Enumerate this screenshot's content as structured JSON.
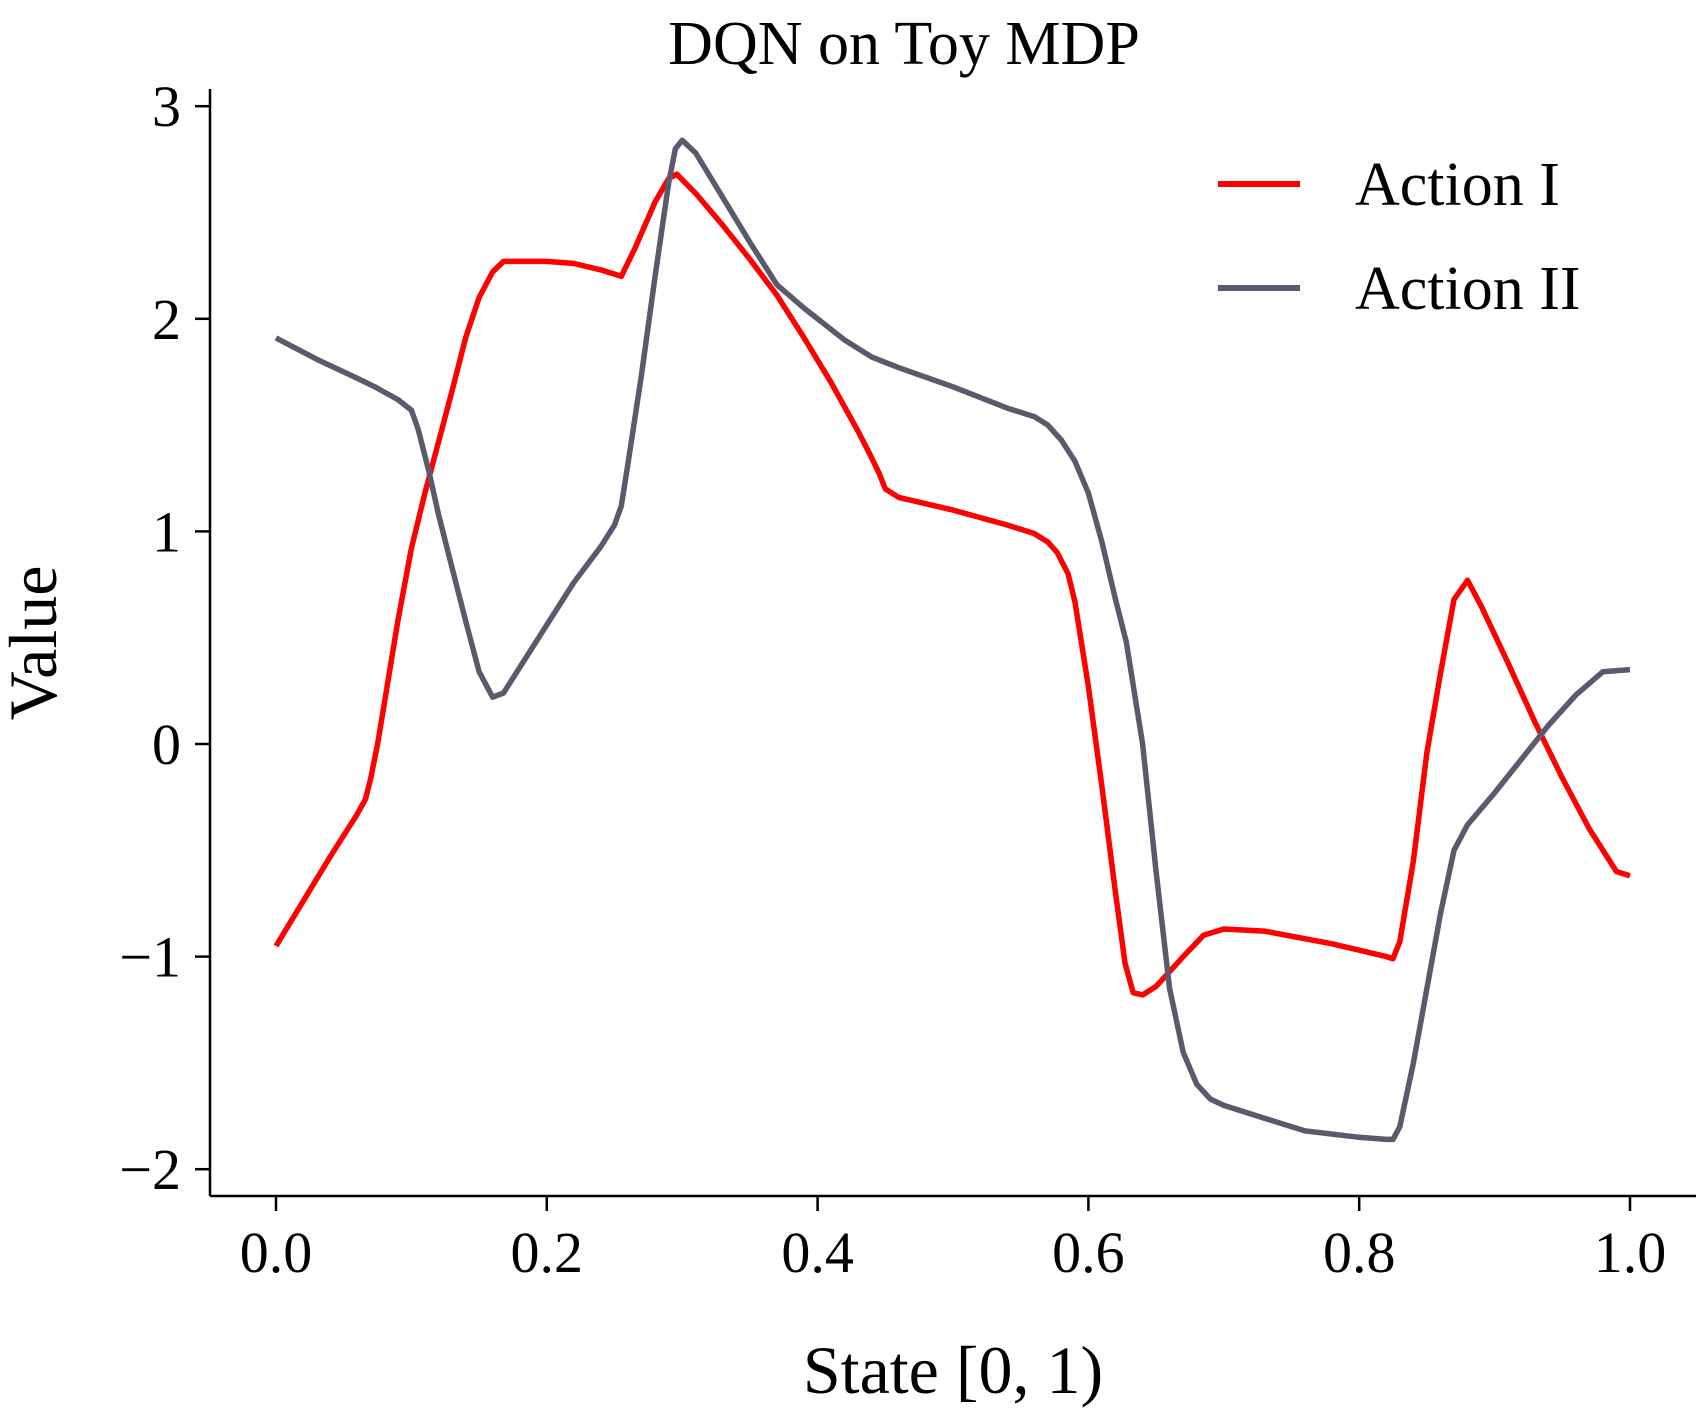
{
  "chart_data": {
    "type": "line",
    "title": "DQN on Toy MDP",
    "xlabel": "State [0, 1)",
    "ylabel": "Value",
    "xlim": [
      -0.05,
      1.05
    ],
    "ylim": [
      -2.1,
      3.1
    ],
    "xticks": [
      0.0,
      0.2,
      0.4,
      0.6,
      0.8,
      1.0
    ],
    "xtick_labels": [
      "0.0",
      "0.2",
      "0.4",
      "0.6",
      "0.8",
      "1.0"
    ],
    "yticks": [
      -2,
      -1,
      0,
      1,
      2,
      3
    ],
    "ytick_labels": [
      "−2",
      "−1",
      "0",
      "1",
      "2",
      "3"
    ],
    "grid": false,
    "legend_position": "top-right",
    "series": [
      {
        "name": "Action I",
        "color": "#ff0000",
        "points": [
          [
            0.0,
            -0.95
          ],
          [
            0.02,
            -0.74
          ],
          [
            0.04,
            -0.53
          ],
          [
            0.06,
            -0.33
          ],
          [
            0.066,
            -0.26
          ],
          [
            0.07,
            -0.16
          ],
          [
            0.075,
            0.0
          ],
          [
            0.08,
            0.19
          ],
          [
            0.09,
            0.58
          ],
          [
            0.1,
            0.92
          ],
          [
            0.11,
            1.18
          ],
          [
            0.12,
            1.42
          ],
          [
            0.13,
            1.66
          ],
          [
            0.14,
            1.91
          ],
          [
            0.15,
            2.1
          ],
          [
            0.16,
            2.22
          ],
          [
            0.168,
            2.27
          ],
          [
            0.2,
            2.27
          ],
          [
            0.22,
            2.26
          ],
          [
            0.24,
            2.23
          ],
          [
            0.255,
            2.2
          ],
          [
            0.265,
            2.33
          ],
          [
            0.28,
            2.55
          ],
          [
            0.29,
            2.66
          ],
          [
            0.296,
            2.68
          ],
          [
            0.31,
            2.59
          ],
          [
            0.33,
            2.44
          ],
          [
            0.35,
            2.28
          ],
          [
            0.37,
            2.11
          ],
          [
            0.39,
            1.91
          ],
          [
            0.41,
            1.7
          ],
          [
            0.43,
            1.47
          ],
          [
            0.438,
            1.37
          ],
          [
            0.445,
            1.28
          ],
          [
            0.45,
            1.2
          ],
          [
            0.46,
            1.16
          ],
          [
            0.5,
            1.1
          ],
          [
            0.54,
            1.03
          ],
          [
            0.56,
            0.99
          ],
          [
            0.57,
            0.95
          ],
          [
            0.577,
            0.9
          ],
          [
            0.585,
            0.8
          ],
          [
            0.59,
            0.67
          ],
          [
            0.6,
            0.27
          ],
          [
            0.61,
            -0.2
          ],
          [
            0.62,
            -0.7
          ],
          [
            0.627,
            -1.03
          ],
          [
            0.633,
            -1.17
          ],
          [
            0.64,
            -1.18
          ],
          [
            0.65,
            -1.14
          ],
          [
            0.67,
            -1.0
          ],
          [
            0.685,
            -0.9
          ],
          [
            0.7,
            -0.87
          ],
          [
            0.73,
            -0.88
          ],
          [
            0.78,
            -0.94
          ],
          [
            0.82,
            -1.0
          ],
          [
            0.825,
            -1.01
          ],
          [
            0.83,
            -0.93
          ],
          [
            0.84,
            -0.55
          ],
          [
            0.85,
            -0.04
          ],
          [
            0.86,
            0.33
          ],
          [
            0.87,
            0.68
          ],
          [
            0.88,
            0.77
          ],
          [
            0.89,
            0.65
          ],
          [
            0.91,
            0.38
          ],
          [
            0.93,
            0.1
          ],
          [
            0.95,
            -0.16
          ],
          [
            0.97,
            -0.4
          ],
          [
            0.99,
            -0.6
          ],
          [
            1.0,
            -0.62
          ]
        ]
      },
      {
        "name": "Action II",
        "color": "#5a5a6e",
        "points": [
          [
            0.0,
            1.91
          ],
          [
            0.03,
            1.81
          ],
          [
            0.06,
            1.72
          ],
          [
            0.073,
            1.68
          ],
          [
            0.09,
            1.62
          ],
          [
            0.1,
            1.57
          ],
          [
            0.105,
            1.48
          ],
          [
            0.113,
            1.28
          ],
          [
            0.12,
            1.08
          ],
          [
            0.13,
            0.83
          ],
          [
            0.14,
            0.58
          ],
          [
            0.15,
            0.34
          ],
          [
            0.16,
            0.22
          ],
          [
            0.168,
            0.24
          ],
          [
            0.18,
            0.36
          ],
          [
            0.2,
            0.56
          ],
          [
            0.22,
            0.76
          ],
          [
            0.24,
            0.93
          ],
          [
            0.25,
            1.03
          ],
          [
            0.255,
            1.12
          ],
          [
            0.26,
            1.32
          ],
          [
            0.27,
            1.74
          ],
          [
            0.28,
            2.2
          ],
          [
            0.29,
            2.64
          ],
          [
            0.295,
            2.8
          ],
          [
            0.3,
            2.84
          ],
          [
            0.31,
            2.78
          ],
          [
            0.33,
            2.57
          ],
          [
            0.35,
            2.36
          ],
          [
            0.37,
            2.16
          ],
          [
            0.39,
            2.05
          ],
          [
            0.42,
            1.9
          ],
          [
            0.44,
            1.82
          ],
          [
            0.46,
            1.77
          ],
          [
            0.5,
            1.68
          ],
          [
            0.54,
            1.58
          ],
          [
            0.56,
            1.54
          ],
          [
            0.57,
            1.5
          ],
          [
            0.58,
            1.43
          ],
          [
            0.59,
            1.33
          ],
          [
            0.6,
            1.18
          ],
          [
            0.61,
            0.95
          ],
          [
            0.62,
            0.68
          ],
          [
            0.628,
            0.48
          ],
          [
            0.64,
            0.0
          ],
          [
            0.65,
            -0.6
          ],
          [
            0.66,
            -1.15
          ],
          [
            0.67,
            -1.45
          ],
          [
            0.68,
            -1.6
          ],
          [
            0.69,
            -1.67
          ],
          [
            0.7,
            -1.7
          ],
          [
            0.73,
            -1.76
          ],
          [
            0.76,
            -1.82
          ],
          [
            0.8,
            -1.85
          ],
          [
            0.82,
            -1.86
          ],
          [
            0.825,
            -1.86
          ],
          [
            0.83,
            -1.8
          ],
          [
            0.84,
            -1.5
          ],
          [
            0.85,
            -1.15
          ],
          [
            0.86,
            -0.8
          ],
          [
            0.87,
            -0.5
          ],
          [
            0.88,
            -0.38
          ],
          [
            0.9,
            -0.23
          ],
          [
            0.92,
            -0.07
          ],
          [
            0.94,
            0.09
          ],
          [
            0.96,
            0.23
          ],
          [
            0.98,
            0.34
          ],
          [
            1.0,
            0.35
          ]
        ]
      }
    ]
  }
}
